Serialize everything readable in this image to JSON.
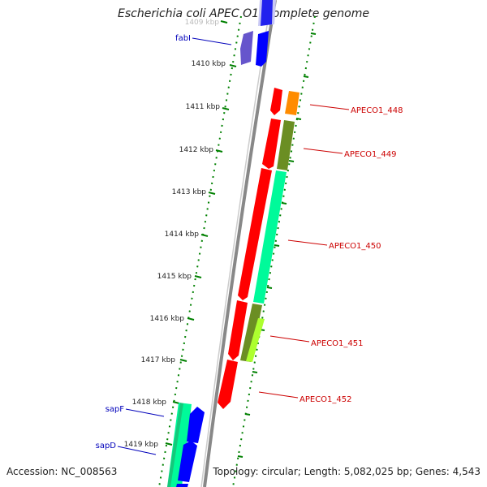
{
  "title": "Escherichia coli APEC O1, complete genome",
  "footer": {
    "accession": "Accession: NC_008563",
    "summary": "Topology: circular; Length: 5,082,025 bp; Genes: 4,543"
  },
  "scale_unit": "kbp",
  "ticks": [
    "1409 kbp",
    "1410 kbp",
    "1411 kbp",
    "1412 kbp",
    "1413 kbp",
    "1414 kbp",
    "1415 kbp",
    "1416 kbp",
    "1417 kbp",
    "1418 kbp",
    "1419 kbp"
  ],
  "gene_labels": {
    "forward": [
      "APECO1_448",
      "APECO1_449",
      "APECO1_450",
      "APECO1_451",
      "APECO1_452"
    ],
    "reverse": [
      "fabI",
      "sapF",
      "sapD"
    ]
  },
  "colors": {
    "backbone": "#808080",
    "forward_label": "#cc0000",
    "reverse_label": "#0000bb",
    "cds": "#ff0000",
    "cds_reverse": "#0000ff",
    "cds_reverse_light": "#6655cc",
    "cog_orange": "#ff8c00",
    "cog_olive": "#6b8e23",
    "cog_aqua": "#00fa9a",
    "cog_lime": "#adff2f",
    "tick_green": "#008000"
  }
}
